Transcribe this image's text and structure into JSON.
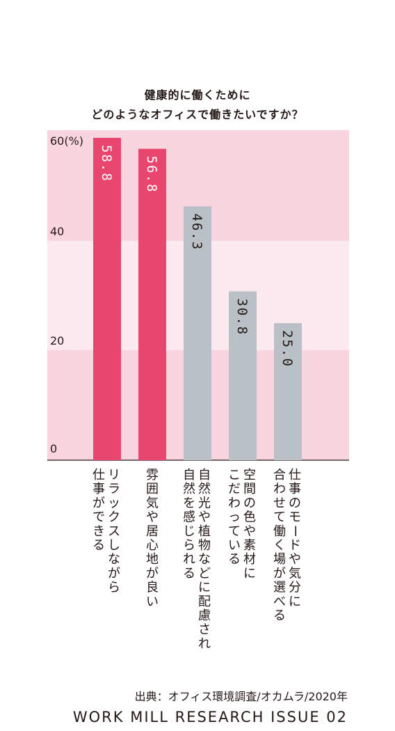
{
  "chart_data": {
    "type": "bar",
    "title": [
      "健康的に働くために",
      "どのようなオフィスで働きたいですか？"
    ],
    "categories": [
      [
        "リラックスしながら",
        "仕事ができる"
      ],
      [
        "雰囲気や居心地が良い"
      ],
      [
        "自然光や植物などに配慮され",
        "自然を感じられる"
      ],
      [
        "空間の色や素材に",
        "こだわっている"
      ],
      [
        "仕事のモードや気分に",
        "合わせて働く場が選べる"
      ]
    ],
    "values": [
      58.8,
      56.8,
      46.3,
      30.8,
      25.0
    ],
    "value_labels": [
      "58.8",
      "56.8",
      "46.3",
      "30.8",
      "25.0"
    ],
    "bar_colors": [
      "#e8456f",
      "#e8456f",
      "#b9c0c6",
      "#b9c0c6",
      "#b9c0c6"
    ],
    "ylim": [
      0,
      60
    ],
    "yticks": [
      0,
      20,
      40,
      60
    ],
    "ytick_labels": [
      "0",
      "20",
      "40",
      "60(%)"
    ],
    "band_colors": [
      "#f9d5df",
      "#fdeaf0"
    ],
    "colors": {
      "label_on_pink": "#ffffff",
      "label_on_gray": "#231815"
    }
  },
  "source": "出典：オフィス環境調査/オカムラ/2020年",
  "footer": "WORK MILL RESEARCH ISSUE 02"
}
